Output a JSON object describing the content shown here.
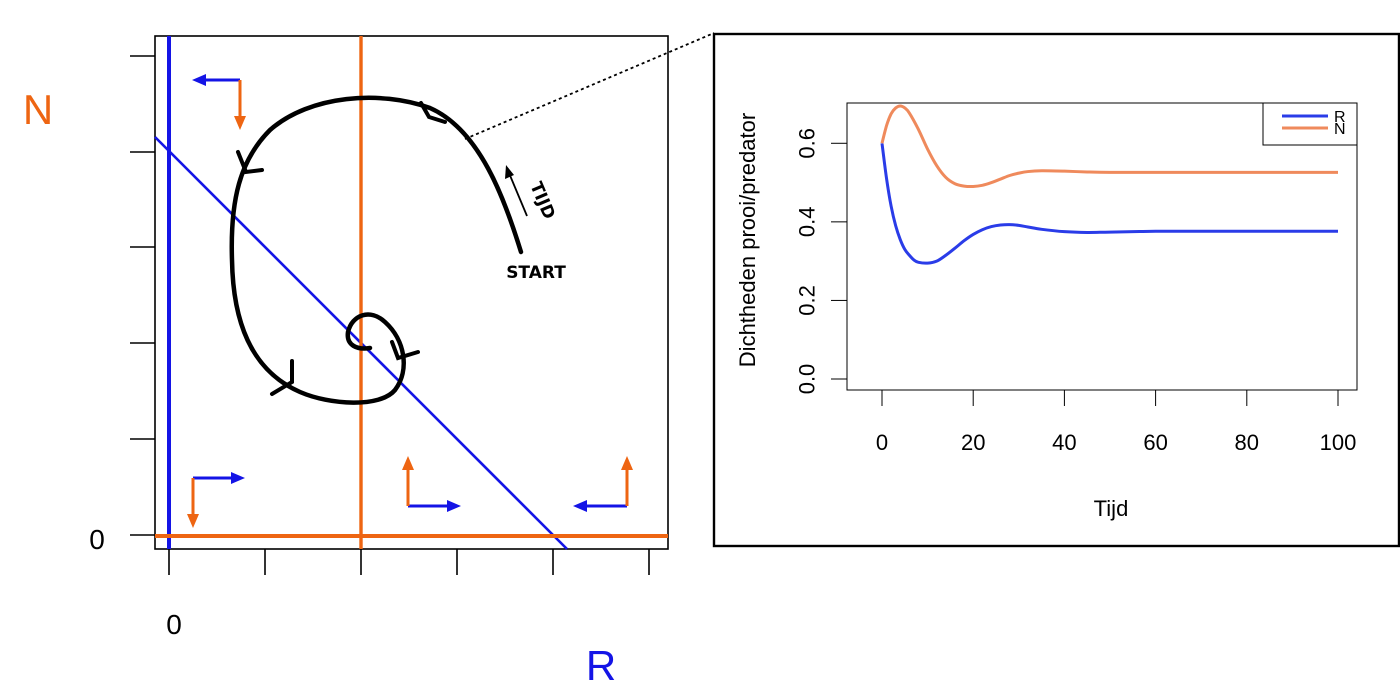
{
  "colors": {
    "R": "#1414e6",
    "N": "#ee6512",
    "trajectory": "#000000",
    "R_series": "#2a3ce8",
    "N_series": "#ef8a5c"
  },
  "phase_plane": {
    "y_axis_label": "N",
    "x_axis_label": "R",
    "y_zero_label": "0",
    "x_zero_label": "0",
    "start_label": "START",
    "time_label": "TIJD"
  },
  "chart_data": [
    {
      "type": "line",
      "title": "",
      "xlabel": "Tijd",
      "ylabel": "Dichtheden prooi/predator",
      "xlim": [
        0,
        100
      ],
      "ylim": [
        0,
        0.7
      ],
      "x_ticks": [
        "0",
        "20",
        "40",
        "60",
        "80",
        "100"
      ],
      "y_ticks": [
        "0.0",
        "0.2",
        "0.4",
        "0.6"
      ],
      "legend": {
        "position": "top-right",
        "entries": [
          "R",
          "N"
        ]
      },
      "series": [
        {
          "name": "R",
          "color": "#2a3ce8",
          "x": [
            0,
            1,
            2,
            3,
            4,
            5,
            6,
            7,
            8,
            10,
            12,
            14,
            16,
            18,
            20,
            22,
            24,
            26,
            28,
            30,
            32,
            35,
            40,
            45,
            50,
            60,
            70,
            80,
            90,
            100
          ],
          "y": [
            0.6,
            0.51,
            0.44,
            0.39,
            0.355,
            0.33,
            0.315,
            0.303,
            0.297,
            0.295,
            0.3,
            0.315,
            0.333,
            0.352,
            0.368,
            0.38,
            0.388,
            0.392,
            0.393,
            0.391,
            0.387,
            0.381,
            0.375,
            0.373,
            0.374,
            0.376,
            0.376,
            0.376,
            0.376,
            0.376
          ]
        },
        {
          "name": "N",
          "color": "#ef8a5c",
          "x": [
            0,
            1,
            2,
            3,
            4,
            5,
            6,
            8,
            10,
            12,
            14,
            16,
            18,
            20,
            22,
            24,
            26,
            28,
            30,
            32,
            35,
            40,
            45,
            50,
            60,
            70,
            80,
            90,
            100
          ],
          "y": [
            0.6,
            0.645,
            0.675,
            0.69,
            0.695,
            0.69,
            0.677,
            0.635,
            0.585,
            0.543,
            0.513,
            0.497,
            0.491,
            0.49,
            0.493,
            0.5,
            0.509,
            0.518,
            0.524,
            0.528,
            0.53,
            0.529,
            0.527,
            0.526,
            0.526,
            0.526,
            0.526,
            0.526,
            0.526
          ]
        }
      ]
    }
  ]
}
